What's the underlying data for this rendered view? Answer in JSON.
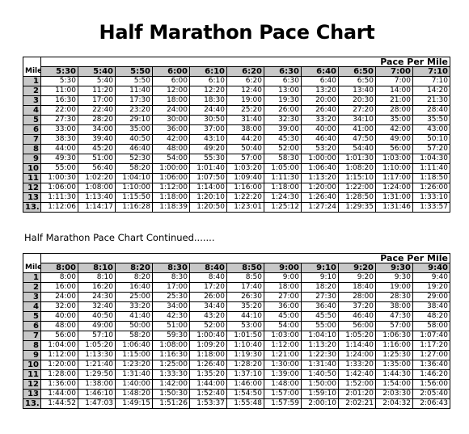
{
  "title": "Half Marathon Pace Chart",
  "continued_label": "Half Marathon Pace Chart Continued.......",
  "tables": [
    {
      "mile_header": "Mile",
      "group_header": "Pace Per Mile",
      "paces": [
        "5:30",
        "5:40",
        "5:50",
        "6:00",
        "6:10",
        "6:20",
        "6:30",
        "6:40",
        "6:50",
        "7:00",
        "7:10"
      ],
      "rows": [
        {
          "mile": "1",
          "times": [
            "5:30",
            "5:40",
            "5:50",
            "6:00",
            "6:10",
            "6:20",
            "6:30",
            "6:40",
            "6:50",
            "7:00",
            "7:10"
          ]
        },
        {
          "mile": "2",
          "times": [
            "11:00",
            "11:20",
            "11:40",
            "12:00",
            "12:20",
            "12:40",
            "13:00",
            "13:20",
            "13:40",
            "14:00",
            "14:20"
          ]
        },
        {
          "mile": "3",
          "times": [
            "16:30",
            "17:00",
            "17:30",
            "18:00",
            "18:30",
            "19:00",
            "19:30",
            "20:00",
            "20:30",
            "21:00",
            "21:30"
          ]
        },
        {
          "mile": "4",
          "times": [
            "22:00",
            "22:40",
            "23:20",
            "24:00",
            "24:40",
            "25:20",
            "26:00",
            "26:40",
            "27:20",
            "28:00",
            "28:40"
          ]
        },
        {
          "mile": "5",
          "times": [
            "27:30",
            "28:20",
            "29:10",
            "30:00",
            "30:50",
            "31:40",
            "32:30",
            "33:20",
            "34:10",
            "35:00",
            "35:50"
          ]
        },
        {
          "mile": "6",
          "times": [
            "33:00",
            "34:00",
            "35:00",
            "36:00",
            "37:00",
            "38:00",
            "39:00",
            "40:00",
            "41:00",
            "42:00",
            "43:00"
          ]
        },
        {
          "mile": "7",
          "times": [
            "38:30",
            "39:40",
            "40:50",
            "42:00",
            "43:10",
            "44:20",
            "45:30",
            "46:40",
            "47:50",
            "49:00",
            "50:10"
          ]
        },
        {
          "mile": "8",
          "times": [
            "44:00",
            "45:20",
            "46:40",
            "48:00",
            "49:20",
            "50:40",
            "52:00",
            "53:20",
            "54:40",
            "56:00",
            "57:20"
          ]
        },
        {
          "mile": "9",
          "times": [
            "49:30",
            "51:00",
            "52:30",
            "54:00",
            "55:30",
            "57:00",
            "58:30",
            "1:00:00",
            "1:01:30",
            "1:03:00",
            "1:04:30"
          ]
        },
        {
          "mile": "10",
          "times": [
            "55:00",
            "56:40",
            "58:20",
            "1:00:00",
            "1:01:40",
            "1:03:20",
            "1:05:00",
            "1:06:40",
            "1:08:20",
            "1:10:00",
            "1:11:40"
          ]
        },
        {
          "mile": "11",
          "times": [
            "1:00:30",
            "1:02:20",
            "1:04:10",
            "1:06:00",
            "1:07:50",
            "1:09:40",
            "1:11:30",
            "1:13:20",
            "1:15:10",
            "1:17:00",
            "1:18:50"
          ]
        },
        {
          "mile": "12",
          "times": [
            "1:06:00",
            "1:08:00",
            "1:10:00",
            "1:12:00",
            "1:14:00",
            "1:16:00",
            "1:18:00",
            "1:20:00",
            "1:22:00",
            "1:24:00",
            "1:26:00"
          ]
        },
        {
          "mile": "13",
          "times": [
            "1:11:30",
            "1:13:40",
            "1:15:50",
            "1:18:00",
            "1:20:10",
            "1:22:20",
            "1:24:30",
            "1:26:40",
            "1:28:50",
            "1:31:00",
            "1:33:10"
          ]
        },
        {
          "mile": "13.1",
          "times": [
            "1:12:06",
            "1:14:17",
            "1:16:28",
            "1:18:39",
            "1:20:50",
            "1:23:01",
            "1:25:12",
            "1:27:24",
            "1:29:35",
            "1:31:46",
            "1:33:57"
          ]
        }
      ]
    },
    {
      "mile_header": "Mile",
      "group_header": "Pace Per Mile",
      "paces": [
        "8:00",
        "8:10",
        "8:20",
        "8:30",
        "8:40",
        "8:50",
        "9:00",
        "9:10",
        "9:20",
        "9:30",
        "9:40"
      ],
      "rows": [
        {
          "mile": "1",
          "times": [
            "8:00",
            "8:10",
            "8:20",
            "8:30",
            "8:40",
            "8:50",
            "9:00",
            "9:10",
            "9:20",
            "9:30",
            "9:40"
          ]
        },
        {
          "mile": "2",
          "times": [
            "16:00",
            "16:20",
            "16:40",
            "17:00",
            "17:20",
            "17:40",
            "18:00",
            "18:20",
            "18:40",
            "19:00",
            "19:20"
          ]
        },
        {
          "mile": "3",
          "times": [
            "24:00",
            "24:30",
            "25:00",
            "25:30",
            "26:00",
            "26:30",
            "27:00",
            "27:30",
            "28:00",
            "28:30",
            "29:00"
          ]
        },
        {
          "mile": "4",
          "times": [
            "32:00",
            "32:40",
            "33:20",
            "34:00",
            "34:40",
            "35:20",
            "36:00",
            "36:40",
            "37:20",
            "38:00",
            "38:40"
          ]
        },
        {
          "mile": "5",
          "times": [
            "40:00",
            "40:50",
            "41:40",
            "42:30",
            "43:20",
            "44:10",
            "45:00",
            "45:50",
            "46:40",
            "47:30",
            "48:20"
          ]
        },
        {
          "mile": "6",
          "times": [
            "48:00",
            "49:00",
            "50:00",
            "51:00",
            "52:00",
            "53:00",
            "54:00",
            "55:00",
            "56:00",
            "57:00",
            "58:00"
          ]
        },
        {
          "mile": "7",
          "times": [
            "56:00",
            "57:10",
            "58:20",
            "59:30",
            "1:00:40",
            "1:01:50",
            "1:03:00",
            "1:04:10",
            "1:05:20",
            "1:06:30",
            "1:07:40"
          ]
        },
        {
          "mile": "8",
          "times": [
            "1:04:00",
            "1:05:20",
            "1:06:40",
            "1:08:00",
            "1:09:20",
            "1:10:40",
            "1:12:00",
            "1:13:20",
            "1:14:40",
            "1:16:00",
            "1:17:20"
          ]
        },
        {
          "mile": "9",
          "times": [
            "1:12:00",
            "1:13:30",
            "1:15:00",
            "1:16:30",
            "1:18:00",
            "1:19:30",
            "1:21:00",
            "1:22:30",
            "1:24:00",
            "1:25:30",
            "1:27:00"
          ]
        },
        {
          "mile": "10",
          "times": [
            "1:20:00",
            "1:21:40",
            "1:23:20",
            "1:25:00",
            "1:26:40",
            "1:28:20",
            "1:30:00",
            "1:31:40",
            "1:33:20",
            "1:35:00",
            "1:36:40"
          ]
        },
        {
          "mile": "11",
          "times": [
            "1:28:00",
            "1:29:50",
            "1:31:40",
            "1:33:30",
            "1:35:20",
            "1:37:10",
            "1:39:00",
            "1:40:50",
            "1:42:40",
            "1:44:30",
            "1:46:20"
          ]
        },
        {
          "mile": "12",
          "times": [
            "1:36:00",
            "1:38:00",
            "1:40:00",
            "1:42:00",
            "1:44:00",
            "1:46:00",
            "1:48:00",
            "1:50:00",
            "1:52:00",
            "1:54:00",
            "1:56:00"
          ]
        },
        {
          "mile": "13",
          "times": [
            "1:44:00",
            "1:46:10",
            "1:48:20",
            "1:50:30",
            "1:52:40",
            "1:54:50",
            "1:57:00",
            "1:59:10",
            "2:01:20",
            "2:03:30",
            "2:05:40"
          ]
        },
        {
          "mile": "13.1",
          "times": [
            "1:44:52",
            "1:47:03",
            "1:49:15",
            "1:51:26",
            "1:53:37",
            "1:55:48",
            "1:57:59",
            "2:00:10",
            "2:02:21",
            "2:04:32",
            "2:06:43"
          ]
        }
      ]
    }
  ]
}
